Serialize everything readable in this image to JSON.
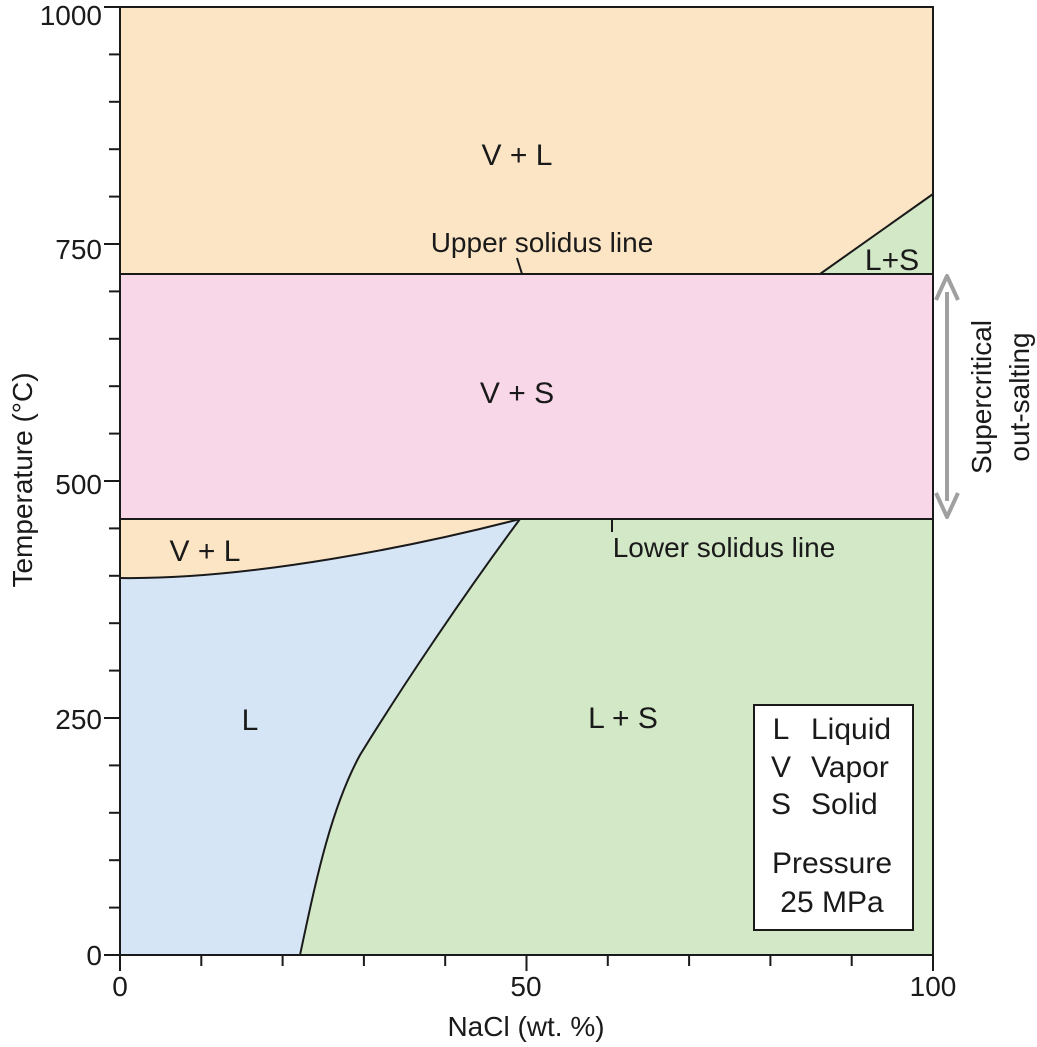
{
  "figure": {
    "x_axis": {
      "title": "NaCl (wt. %)",
      "range": [
        0,
        100
      ],
      "tick_labels": [
        "0",
        "50",
        "100"
      ],
      "tick_values": [
        0,
        50,
        100
      ],
      "minor_tick_step": 10
    },
    "y_axis": {
      "title": "Temperature (°C)",
      "range": [
        0,
        1000
      ],
      "tick_labels": [
        "0",
        "250",
        "500",
        "750",
        "1000"
      ],
      "tick_values": [
        0,
        250,
        500,
        750,
        1000
      ],
      "minor_tick_step": 50
    },
    "regions": [
      {
        "id": "vl-upper",
        "label": "V + L",
        "color": "#fce5c5"
      },
      {
        "id": "ls-upper",
        "label": "L+S",
        "color": "#d3e8c6"
      },
      {
        "id": "vs",
        "label": "V + S",
        "color": "#f8d8e8"
      },
      {
        "id": "vl-lower",
        "label": "V + L",
        "color": "#fce5c5"
      },
      {
        "id": "l",
        "label": "L",
        "color": "#d5e5f5"
      },
      {
        "id": "ls-lower",
        "label": "L + S",
        "color": "#d3e8c6"
      }
    ],
    "annotations": {
      "upper_solidus": "Upper solidus line",
      "lower_solidus": "Lower solidus line"
    },
    "boundaries": {
      "upper_solidus_T": 722,
      "lower_solidus_T": 462
    },
    "side_arrow": {
      "line1": "Supercritical",
      "line2": "out-salting",
      "color": "#a0a0a0"
    },
    "legend": {
      "entries": [
        {
          "symbol": "L",
          "name": "Liquid"
        },
        {
          "symbol": "V",
          "name": "Vapor"
        },
        {
          "symbol": "S",
          "name": "Solid"
        }
      ],
      "pressure_label": "Pressure",
      "pressure_value": "25 MPa"
    }
  }
}
